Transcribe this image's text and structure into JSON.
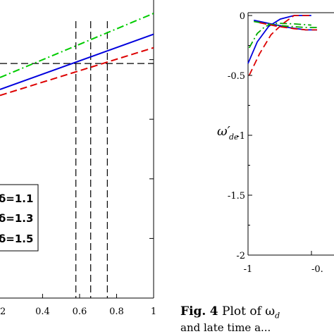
{
  "chart_data": [
    {
      "type": "line",
      "title": "",
      "x_tick_labels": [
        "0.4",
        "0.6",
        "0.8",
        "1"
      ],
      "x_ticks_partial_left": "2",
      "xlim": [
        0.17,
        1.0
      ],
      "ylim": [
        0.0,
        1.0
      ],
      "grid": false,
      "series": [
        {
          "color": "#00cc00",
          "dash": "dashdot",
          "x": [
            0.17,
            1.0
          ],
          "y": [
            0.74,
            0.955
          ]
        },
        {
          "color": "#0000dd",
          "dash": "solid",
          "x": [
            0.17,
            1.0
          ],
          "y": [
            0.7,
            0.885
          ]
        },
        {
          "color": "#dd0000",
          "dash": "dashed",
          "x": [
            0.17,
            1.0
          ],
          "y": [
            0.68,
            0.84
          ]
        }
      ],
      "reference_lines": {
        "horizontal_y": 0.787,
        "vertical_x": [
          0.58,
          0.66,
          0.75
        ],
        "style": "dashed",
        "color": "#000000"
      },
      "legend": {
        "placement": "lower-left",
        "entries": [
          "δ=1.1",
          "δ=1.3",
          "δ=1.5"
        ]
      }
    },
    {
      "type": "line",
      "title": "",
      "ylabel": "ω′de",
      "y_tick_labels": [
        "0",
        "-0.5",
        "-1",
        "-1.5",
        "-2"
      ],
      "x_tick_labels": [
        "-1",
        "-0."
      ],
      "xlim": [
        -1.0,
        -0.4
      ],
      "ylim": [
        -2.0,
        0.0
      ],
      "grid": false,
      "series": [
        {
          "color": "#00aa00",
          "dash": "dashdot",
          "x": [
            -0.99,
            -0.92,
            -0.85,
            -0.75,
            -0.6,
            -0.45
          ],
          "y": [
            -0.27,
            -0.15,
            -0.09,
            -0.065,
            -0.07,
            -0.08
          ]
        },
        {
          "color": "#0000dd",
          "dash": "solid",
          "x": [
            -1.0,
            -0.92,
            -0.82,
            -0.72,
            -0.6,
            -0.45
          ],
          "y": [
            -0.4,
            -0.22,
            -0.09,
            -0.03,
            0.0,
            0.0
          ]
        },
        {
          "color": "#dd0000",
          "dash": "dashed",
          "x": [
            -0.99,
            -0.9,
            -0.8,
            -0.7,
            -0.6,
            -0.45
          ],
          "y": [
            -0.5,
            -0.32,
            -0.16,
            -0.07,
            0.0,
            0.0
          ]
        },
        {
          "color": "#0000dd",
          "dash": "solid",
          "x": [
            -0.95,
            -0.8,
            -0.65,
            -0.5,
            -0.4
          ],
          "y": [
            -0.04,
            -0.07,
            -0.1,
            -0.12,
            -0.12
          ]
        },
        {
          "color": "#00aa00",
          "dash": "dashdot",
          "x": [
            -0.95,
            -0.8,
            -0.65,
            -0.5,
            -0.4
          ],
          "y": [
            -0.05,
            -0.075,
            -0.09,
            -0.1,
            -0.1
          ]
        },
        {
          "color": "#dd0000",
          "dash": "dashed",
          "x": [
            -0.9,
            -0.75,
            -0.6,
            -0.5,
            -0.4
          ],
          "y": [
            -0.06,
            -0.09,
            -0.11,
            -0.12,
            -0.12
          ]
        }
      ]
    }
  ],
  "caption": {
    "label": "Fig.",
    "number": "4",
    "text": "Plot of ω",
    "subscript": "d",
    "line2": "and late time a..."
  }
}
